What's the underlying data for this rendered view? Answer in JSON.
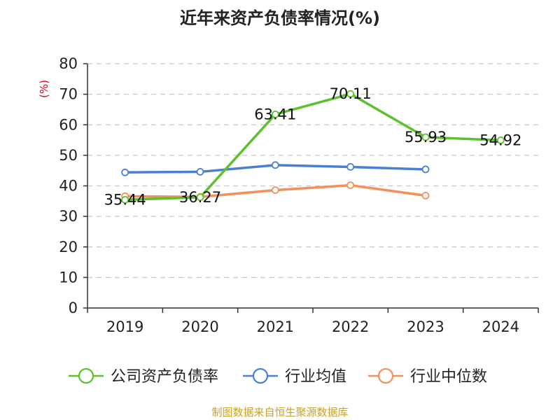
{
  "title": "近年来资产负债率情况(%)",
  "source": "制图数据来自恒生聚源数据库",
  "chart_data": {
    "type": "line",
    "ylabel": "(%)",
    "ylim": [
      0,
      80
    ],
    "yticks": [
      0,
      10,
      20,
      30,
      40,
      50,
      60,
      70,
      80
    ],
    "grid": true,
    "legend_position": "bottom",
    "categories": [
      "2019",
      "2020",
      "2021",
      "2022",
      "2023",
      "2024"
    ],
    "series": [
      {
        "name": "公司资产负债率",
        "color": "#5cc12c",
        "values": [
          35.44,
          36.27,
          63.41,
          70.11,
          55.93,
          54.92
        ],
        "labels": [
          "35.44",
          "36.27",
          "63.41",
          "70.11",
          "55.93",
          "54.92"
        ]
      },
      {
        "name": "行业均值",
        "color": "#4a7fd4",
        "values": [
          44.4,
          44.6,
          46.8,
          46.2,
          45.4,
          null
        ]
      },
      {
        "name": "行业中位数",
        "color": "#f4905c",
        "values": [
          36.6,
          36.4,
          38.6,
          40.2,
          36.8,
          null
        ]
      }
    ]
  }
}
